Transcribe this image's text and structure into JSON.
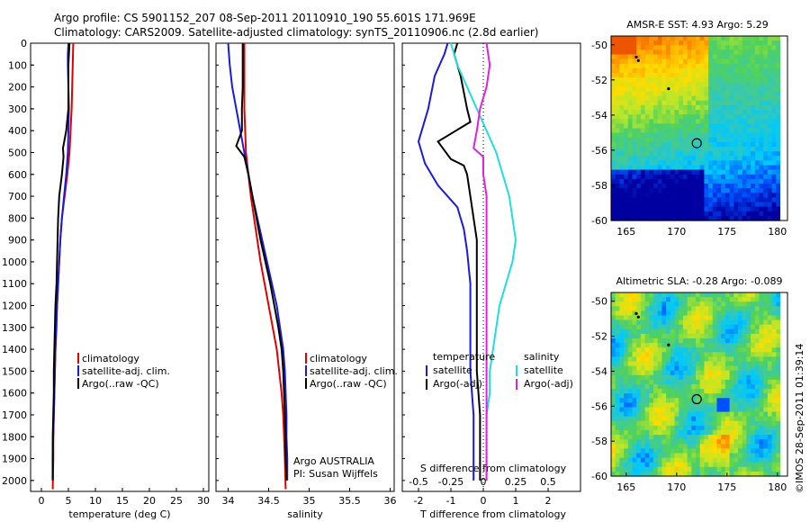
{
  "header": {
    "line1": "Argo profile: CS 5901152_207 08-Sep-2011 20110910_190 55.601S 171.969E",
    "line2": "Climatology: CARS2009. Satellite-adjusted climatology: synTS_20110906.nc (2.8d earlier)"
  },
  "side_text": "©IMOS 28-Sep-2011 01:39:14",
  "colors": {
    "climatology": "#e00000",
    "satellite": "#1a1adc",
    "argo": "#000000",
    "salinity_satellite": "#22dddd",
    "salinity_argo": "#e020e0"
  },
  "chart_data": [
    {
      "type": "line",
      "id": "temperature",
      "xlabel": "temperature (deg C)",
      "xlim": [
        -2,
        31
      ],
      "xticks": [
        "0",
        "5",
        "10",
        "15",
        "20",
        "25",
        "30"
      ],
      "xtick_values": [
        0,
        5,
        10,
        15,
        20,
        25,
        30
      ],
      "ylim": [
        0,
        2050
      ],
      "yticks": [
        "0",
        "100",
        "200",
        "300",
        "400",
        "500",
        "600",
        "700",
        "800",
        "900",
        "1000",
        "1100",
        "1200",
        "1300",
        "1400",
        "1500",
        "1600",
        "1700",
        "1800",
        "1900",
        "2000"
      ],
      "legend": [
        "climatology",
        "satellite-adj. clim.",
        "Argo(..raw -QC)"
      ],
      "series": [
        {
          "name": "climatology",
          "color": "#e00000",
          "points": [
            [
              5.9,
              0
            ],
            [
              5.8,
              100
            ],
            [
              5.7,
              200
            ],
            [
              5.6,
              300
            ],
            [
              5.4,
              400
            ],
            [
              5.2,
              500
            ],
            [
              4.8,
              600
            ],
            [
              4.3,
              700
            ],
            [
              3.8,
              800
            ],
            [
              3.5,
              900
            ],
            [
              3.3,
              1000
            ],
            [
              3.1,
              1100
            ],
            [
              2.9,
              1200
            ],
            [
              2.8,
              1300
            ],
            [
              2.6,
              1400
            ],
            [
              2.5,
              1500
            ],
            [
              2.4,
              1600
            ],
            [
              2.3,
              1700
            ],
            [
              2.2,
              1800
            ],
            [
              2.2,
              1900
            ],
            [
              2.1,
              2040
            ]
          ]
        },
        {
          "name": "satellite-adj. clim.",
          "color": "#1a1adc",
          "points": [
            [
              5.0,
              0
            ],
            [
              4.9,
              50
            ],
            [
              4.9,
              100
            ],
            [
              5.0,
              200
            ],
            [
              5.1,
              300
            ],
            [
              5.0,
              400
            ],
            [
              4.9,
              500
            ],
            [
              4.6,
              600
            ],
            [
              4.2,
              700
            ],
            [
              3.8,
              800
            ],
            [
              3.5,
              900
            ],
            [
              3.3,
              1000
            ],
            [
              3.1,
              1100
            ],
            [
              2.9,
              1200
            ],
            [
              2.7,
              1300
            ],
            [
              2.6,
              1400
            ],
            [
              2.5,
              1500
            ],
            [
              2.4,
              1600
            ],
            [
              2.3,
              1700
            ],
            [
              2.2,
              1800
            ],
            [
              2.1,
              1900
            ],
            [
              2.1,
              2000
            ]
          ]
        },
        {
          "name": "Argo(..raw -QC)",
          "color": "#000000",
          "points": [
            [
              5.2,
              0
            ],
            [
              5.1,
              50
            ],
            [
              5.0,
              100
            ],
            [
              5.0,
              200
            ],
            [
              5.0,
              300
            ],
            [
              4.6,
              400
            ],
            [
              4.0,
              480
            ],
            [
              4.1,
              520
            ],
            [
              3.8,
              600
            ],
            [
              3.3,
              700
            ],
            [
              3.1,
              800
            ],
            [
              3.0,
              900
            ],
            [
              2.9,
              1000
            ],
            [
              2.8,
              1100
            ],
            [
              2.6,
              1200
            ],
            [
              2.5,
              1300
            ],
            [
              2.4,
              1400
            ],
            [
              2.3,
              1500
            ],
            [
              2.3,
              1600
            ],
            [
              2.2,
              1700
            ],
            [
              2.1,
              1800
            ],
            [
              2.1,
              1900
            ],
            [
              2.1,
              2000
            ]
          ]
        }
      ]
    },
    {
      "type": "line",
      "id": "salinity",
      "xlabel": "salinity",
      "xlim": [
        33.85,
        36.05
      ],
      "xticks": [
        "34",
        "34.5",
        "35",
        "35.5",
        "36"
      ],
      "xtick_values": [
        34,
        34.5,
        35,
        35.5,
        36
      ],
      "ylim": [
        0,
        2050
      ],
      "legend": [
        "climatology",
        "satellite-adj. clim.",
        "Argo(..raw -QC)"
      ],
      "annotation": [
        "Argo AUSTRALIA",
        "PI: Susan Wijffels"
      ],
      "series": [
        {
          "name": "climatology",
          "color": "#e00000",
          "points": [
            [
              34.2,
              0
            ],
            [
              34.2,
              100
            ],
            [
              34.2,
              200
            ],
            [
              34.2,
              300
            ],
            [
              34.21,
              400
            ],
            [
              34.22,
              500
            ],
            [
              34.25,
              600
            ],
            [
              34.28,
              700
            ],
            [
              34.32,
              800
            ],
            [
              34.36,
              900
            ],
            [
              34.4,
              1000
            ],
            [
              34.45,
              1100
            ],
            [
              34.5,
              1200
            ],
            [
              34.55,
              1300
            ],
            [
              34.6,
              1400
            ],
            [
              34.63,
              1500
            ],
            [
              34.66,
              1600
            ],
            [
              34.68,
              1700
            ],
            [
              34.69,
              1800
            ],
            [
              34.7,
              1900
            ],
            [
              34.71,
              2040
            ]
          ]
        },
        {
          "name": "satellite-adj. clim.",
          "color": "#1a1adc",
          "points": [
            [
              34.0,
              0
            ],
            [
              34.02,
              100
            ],
            [
              34.05,
              200
            ],
            [
              34.1,
              300
            ],
            [
              34.15,
              400
            ],
            [
              34.2,
              500
            ],
            [
              34.25,
              600
            ],
            [
              34.3,
              700
            ],
            [
              34.36,
              800
            ],
            [
              34.42,
              900
            ],
            [
              34.48,
              1000
            ],
            [
              34.54,
              1100
            ],
            [
              34.6,
              1200
            ],
            [
              34.64,
              1300
            ],
            [
              34.68,
              1400
            ],
            [
              34.7,
              1500
            ],
            [
              34.71,
              1600
            ],
            [
              34.72,
              1700
            ],
            [
              34.72,
              1800
            ],
            [
              34.73,
              1900
            ],
            [
              34.73,
              2000
            ]
          ]
        },
        {
          "name": "Argo(..raw -QC)",
          "color": "#000000",
          "points": [
            [
              34.18,
              0
            ],
            [
              34.18,
              100
            ],
            [
              34.18,
              200
            ],
            [
              34.17,
              300
            ],
            [
              34.17,
              400
            ],
            [
              34.1,
              470
            ],
            [
              34.2,
              520
            ],
            [
              34.25,
              600
            ],
            [
              34.3,
              700
            ],
            [
              34.35,
              800
            ],
            [
              34.4,
              900
            ],
            [
              34.46,
              1000
            ],
            [
              34.52,
              1100
            ],
            [
              34.57,
              1200
            ],
            [
              34.62,
              1300
            ],
            [
              34.66,
              1400
            ],
            [
              34.68,
              1500
            ],
            [
              34.69,
              1600
            ],
            [
              34.7,
              1700
            ],
            [
              34.71,
              1800
            ],
            [
              34.71,
              1900
            ],
            [
              34.72,
              2000
            ]
          ]
        }
      ]
    },
    {
      "type": "line",
      "id": "differences",
      "xlabel": "T difference from climatology",
      "xlabel_top": "S difference from climatology",
      "xlim": [
        -2.5,
        3
      ],
      "xticks": [
        "-2",
        "-1",
        "0",
        "1",
        "2"
      ],
      "xtick_values": [
        -2,
        -1,
        0,
        1,
        2
      ],
      "s_xticks": [
        "-0.5",
        "-0.25",
        "0",
        "0.25",
        "0.5"
      ],
      "s_xtick_values": [
        -2,
        -1,
        0,
        1,
        2
      ],
      "ylim": [
        0,
        2050
      ],
      "legend_temperature": [
        "temperature",
        "satellite",
        "Argo(-adj)"
      ],
      "legend_salinity": [
        "salinity",
        "satellite",
        "Argo(-adj)"
      ],
      "series": [
        {
          "name": "temperature satellite",
          "color": "#1a1adc",
          "points": [
            [
              -1.1,
              0
            ],
            [
              -1.2,
              50
            ],
            [
              -1.5,
              150
            ],
            [
              -1.7,
              300
            ],
            [
              -2.0,
              450
            ],
            [
              -1.8,
              550
            ],
            [
              -1.4,
              650
            ],
            [
              -0.8,
              750
            ],
            [
              -0.6,
              850
            ],
            [
              -0.5,
              950
            ],
            [
              -0.4,
              1100
            ],
            [
              -0.4,
              1300
            ],
            [
              -0.4,
              1500
            ],
            [
              -0.3,
              1700
            ],
            [
              -0.3,
              1900
            ],
            [
              -0.3,
              2000
            ]
          ]
        },
        {
          "name": "temperature Argo(-adj)",
          "color": "#000000",
          "points": [
            [
              -0.8,
              0
            ],
            [
              -0.9,
              50
            ],
            [
              -0.7,
              150
            ],
            [
              -0.5,
              300
            ],
            [
              -0.4,
              360
            ],
            [
              -1.4,
              450
            ],
            [
              -1.0,
              530
            ],
            [
              -0.6,
              560
            ],
            [
              -0.5,
              600
            ],
            [
              -0.4,
              700
            ],
            [
              -0.3,
              800
            ],
            [
              -0.2,
              900
            ],
            [
              -0.2,
              1100
            ],
            [
              -0.2,
              1300
            ],
            [
              -0.2,
              1500
            ],
            [
              -0.1,
              1700
            ],
            [
              -0.1,
              1900
            ],
            [
              -0.1,
              2000
            ]
          ]
        },
        {
          "name": "salinity satellite",
          "color": "#22dddd",
          "points": [
            [
              -1.0,
              0
            ],
            [
              -0.8,
              100
            ],
            [
              -0.5,
              200
            ],
            [
              -0.2,
              300
            ],
            [
              0.1,
              400
            ],
            [
              0.4,
              500
            ],
            [
              0.6,
              600
            ],
            [
              0.8,
              700
            ],
            [
              0.9,
              800
            ],
            [
              1.0,
              900
            ],
            [
              0.9,
              1000
            ],
            [
              0.7,
              1100
            ],
            [
              0.5,
              1200
            ],
            [
              0.4,
              1300
            ],
            [
              0.3,
              1400
            ],
            [
              0.2,
              1500
            ],
            [
              0.2,
              1600
            ],
            [
              0.1,
              1700
            ],
            [
              0.1,
              1800
            ],
            [
              0.1,
              1900
            ],
            [
              0.1,
              2000
            ]
          ]
        },
        {
          "name": "salinity Argo(-adj)",
          "color": "#e020e0",
          "points": [
            [
              0.1,
              0
            ],
            [
              0.2,
              100
            ],
            [
              0.1,
              200
            ],
            [
              -0.1,
              300
            ],
            [
              -0.2,
              400
            ],
            [
              -0.3,
              480
            ],
            [
              0.0,
              520
            ],
            [
              0.0,
              600
            ],
            [
              0.1,
              700
            ],
            [
              0.1,
              800
            ],
            [
              0.1,
              900
            ],
            [
              0.1,
              1000
            ],
            [
              0.1,
              1100
            ],
            [
              0.1,
              1200
            ],
            [
              0.1,
              1300
            ],
            [
              0.1,
              1400
            ],
            [
              0.1,
              1500
            ],
            [
              0.1,
              1600
            ],
            [
              0.1,
              1700
            ],
            [
              0.1,
              1800
            ],
            [
              0.1,
              1900
            ],
            [
              0.1,
              2000
            ]
          ]
        }
      ]
    },
    {
      "type": "heatmap",
      "id": "sst_map",
      "title": "AMSR-E SST: 4.93 Argo: 5.29",
      "xlim": [
        163.5,
        181
      ],
      "ylim": [
        -60,
        -49.5
      ],
      "xticks": [
        "165",
        "170",
        "175",
        "180"
      ],
      "xtick_values": [
        165,
        170,
        175,
        180
      ],
      "yticks": [
        "-50",
        "-52",
        "-54",
        "-56",
        "-58",
        "-60"
      ],
      "ytick_values": [
        -50,
        -52,
        -54,
        -56,
        -58,
        -60
      ],
      "argo_position": [
        172,
        -55.6
      ],
      "track_points": [
        [
          166.0,
          -50.7
        ],
        [
          166.2,
          -50.9
        ],
        [
          169.2,
          -52.5
        ]
      ]
    },
    {
      "type": "heatmap",
      "id": "sla_map",
      "title": "Altimetric SLA: -0.28 Argo: -0.089",
      "xlim": [
        163.5,
        181
      ],
      "ylim": [
        -60,
        -49.5
      ],
      "xticks": [
        "165",
        "170",
        "175",
        "180"
      ],
      "xtick_values": [
        165,
        170,
        175,
        180
      ],
      "yticks": [
        "-50",
        "-52",
        "-54",
        "-56",
        "-58",
        "-60"
      ],
      "ytick_values": [
        -50,
        -52,
        -54,
        -56,
        -58,
        -60
      ],
      "argo_position": [
        172,
        -55.6
      ],
      "track_points": [
        [
          166.0,
          -50.7
        ],
        [
          166.2,
          -50.9
        ],
        [
          169.2,
          -52.5
        ]
      ]
    }
  ]
}
